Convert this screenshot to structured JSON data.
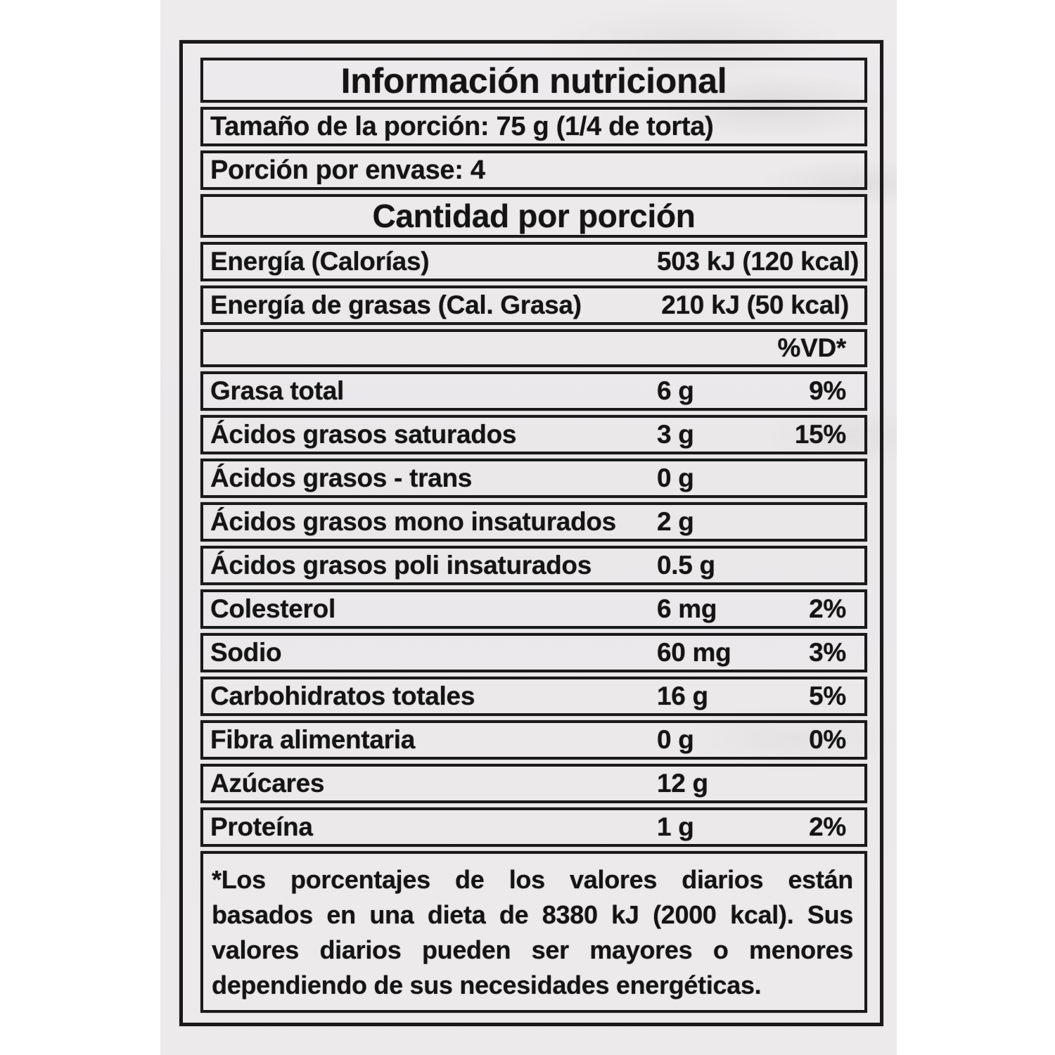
{
  "label": {
    "title": "Información nutricional",
    "serving_size": "Tamaño de la porción: 75 g (1/4 de torta)",
    "servings_per_container": "Porción por envase: 4",
    "section_header": "Cantidad por porción",
    "dv_header": "%VD*",
    "energy_rows": [
      {
        "name": "Energía (Calorías)",
        "value": "503 kJ (120 kcal)"
      },
      {
        "name": "Energía de grasas (Cal. Grasa)",
        "value": "210 kJ (50 kcal)"
      }
    ],
    "nutrient_rows": [
      {
        "name": "Grasa total",
        "value": "6 g",
        "pct": "9%"
      },
      {
        "name": "Ácidos grasos saturados",
        "value": "3 g",
        "pct": "15%"
      },
      {
        "name": "Ácidos grasos - trans",
        "value": "0 g",
        "pct": ""
      },
      {
        "name": "Ácidos grasos mono insaturados",
        "value": "2 g",
        "pct": ""
      },
      {
        "name": "Ácidos grasos poli insaturados",
        "value": "0.5 g",
        "pct": ""
      },
      {
        "name": "Colesterol",
        "value": "6 mg",
        "pct": "2%"
      },
      {
        "name": "Sodio",
        "value": "60 mg",
        "pct": "3%"
      },
      {
        "name": "Carbohidratos totales",
        "value": "16 g",
        "pct": "5%"
      },
      {
        "name": "Fibra alimentaria",
        "value": "0 g",
        "pct": "0%"
      },
      {
        "name": "Azúcares",
        "value": "12 g",
        "pct": ""
      },
      {
        "name": "Proteína",
        "value": "1 g",
        "pct": "2%"
      }
    ],
    "footnote_lines": [
      "*Los porcentajes de los valores diarios están",
      "basados en una dieta de 8380 kJ (2000 kcal). Sus",
      "valores diarios pueden ser mayores o menores",
      "dependiendo de sus necesidades energéticas."
    ]
  },
  "colors": {
    "paper": "#eae8e9",
    "ink": "#141414",
    "page_background": "#ffffff"
  }
}
